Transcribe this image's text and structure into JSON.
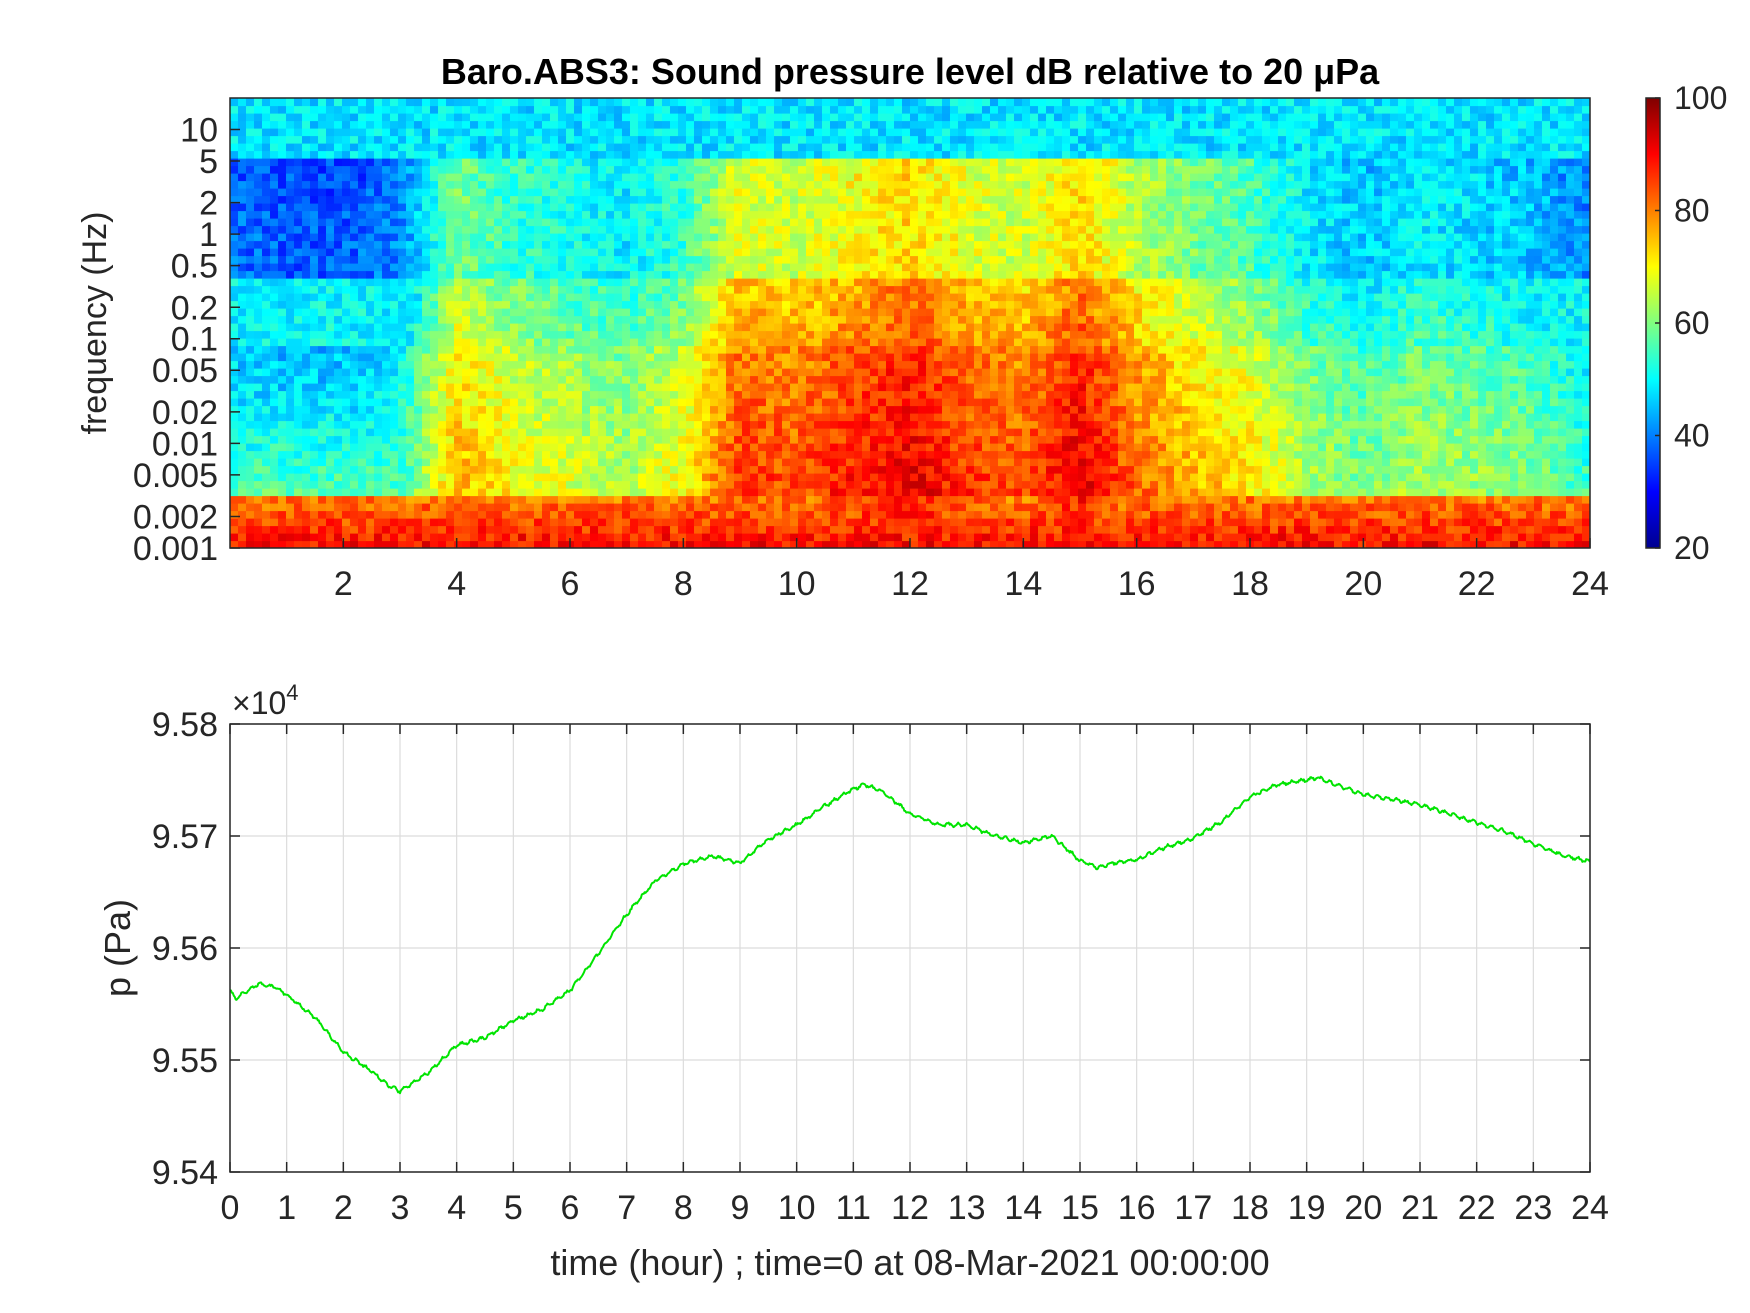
{
  "colors": {
    "background": "#ffffff",
    "axis": "#262626",
    "grid": "#dcdcdc",
    "line": "#00e400"
  },
  "chart_data": [
    {
      "type": "heatmap",
      "title": "Baro.ABS3: Sound pressure level dB relative to 20 μPa",
      "ylabel": "frequency (Hz)",
      "xlabel": "",
      "x_scale": "linear",
      "y_scale": "log",
      "xlim": [
        0,
        24
      ],
      "ylim": [
        0.001,
        20
      ],
      "x_ticks": [
        2,
        4,
        6,
        8,
        10,
        12,
        14,
        16,
        18,
        20,
        22,
        24
      ],
      "y_ticks": [
        0.001,
        0.002,
        0.005,
        0.01,
        0.02,
        0.05,
        0.1,
        0.2,
        0.5,
        1,
        2,
        5,
        10
      ],
      "y_tick_labels": [
        "0.001",
        "0.002",
        "0.005",
        "0.01",
        "0.02",
        "0.05",
        "0.1",
        "0.2",
        "0.5",
        "1",
        "2",
        "5",
        "10"
      ],
      "colorbar": {
        "colormap": "jet",
        "clim": [
          20,
          100
        ],
        "ticks": [
          20,
          40,
          60,
          80,
          100
        ]
      },
      "grid": false,
      "activity_by_hour": {
        "hours": [
          0,
          1,
          2,
          3,
          4,
          5,
          6,
          7,
          8,
          9,
          10,
          11,
          12,
          13,
          14,
          15,
          16,
          17,
          18,
          19,
          20,
          21,
          22,
          23,
          24
        ],
        "level_dB": [
          48,
          46,
          46,
          50,
          72,
          66,
          63,
          60,
          66,
          82,
          80,
          84,
          88,
          82,
          80,
          88,
          78,
          72,
          68,
          60,
          56,
          60,
          58,
          56,
          50
        ]
      },
      "description_note": ""
    },
    {
      "type": "line",
      "title": "",
      "xlabel": "time (hour) ; time=0 at 08-Mar-2021 00:00:00",
      "ylabel": "p (Pa)",
      "y_multiplier": "×10",
      "y_multiplier_exp": "4",
      "xlim": [
        0,
        24
      ],
      "ylim": [
        95400,
        95800
      ],
      "x_ticks": [
        0,
        1,
        2,
        3,
        4,
        5,
        6,
        7,
        8,
        9,
        10,
        11,
        12,
        13,
        14,
        15,
        16,
        17,
        18,
        19,
        20,
        21,
        22,
        23,
        24
      ],
      "y_ticks": [
        95400,
        95500,
        95600,
        95700,
        95800
      ],
      "y_tick_labels": [
        "9.54",
        "9.55",
        "9.56",
        "9.57",
        "9.58"
      ],
      "grid": true,
      "series": [
        {
          "name": "",
          "x": [
            0,
            0.1,
            0.5,
            0.8,
            1.0,
            1.5,
            2.0,
            2.5,
            2.8,
            3.0,
            3.5,
            4.0,
            4.5,
            5.0,
            5.5,
            6.0,
            6.5,
            7.0,
            7.5,
            8.0,
            8.5,
            9.0,
            9.5,
            10.0,
            10.5,
            11.0,
            11.2,
            11.5,
            12.0,
            12.5,
            13.0,
            13.5,
            14.0,
            14.5,
            15.0,
            15.3,
            15.6,
            16.0,
            16.5,
            17.0,
            17.5,
            18.0,
            18.5,
            19.0,
            19.2,
            19.5,
            20.0,
            20.5,
            21.0,
            21.5,
            22.0,
            22.5,
            23.0,
            23.5,
            24.0
          ],
          "values": [
            95562,
            95555,
            95568,
            95565,
            95558,
            95538,
            95507,
            95490,
            95477,
            95472,
            95489,
            95513,
            95520,
            95535,
            95545,
            95562,
            95595,
            95630,
            95660,
            95675,
            95682,
            95676,
            95697,
            95710,
            95727,
            95742,
            95746,
            95740,
            95720,
            95710,
            95710,
            95700,
            95694,
            95700,
            95678,
            95672,
            95676,
            95679,
            95690,
            95698,
            95713,
            95735,
            95746,
            95750,
            95752,
            95746,
            95737,
            95733,
            95728,
            95720,
            95712,
            95704,
            95693,
            95683,
            95677
          ]
        }
      ]
    }
  ]
}
